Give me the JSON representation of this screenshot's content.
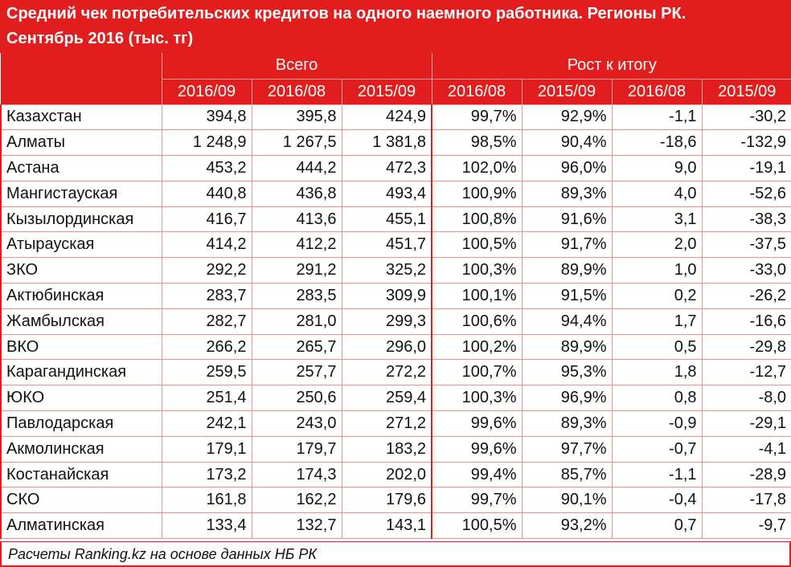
{
  "title_line1": "Средний чек потребительских кредитов на одного наемного работника. Регионы РК.",
  "title_line2": "Сентябрь 2016 (тыс. тг)",
  "group_headers": {
    "total": "Всего",
    "growth": "Рост к итогу"
  },
  "sub_headers": [
    "2016/09",
    "2016/08",
    "2015/09",
    "2016/08",
    "2015/09",
    "2016/08",
    "2015/09"
  ],
  "rows": [
    {
      "region": "Казахстан",
      "cells": [
        "394,8",
        "395,8",
        "424,9",
        "99,7%",
        "92,9%",
        "-1,1",
        "-30,2"
      ]
    },
    {
      "region": "Алматы",
      "cells": [
        "1 248,9",
        "1 267,5",
        "1 381,8",
        "98,5%",
        "90,4%",
        "-18,6",
        "-132,9"
      ]
    },
    {
      "region": "Астана",
      "cells": [
        "453,2",
        "444,2",
        "472,3",
        "102,0%",
        "96,0%",
        "9,0",
        "-19,1"
      ]
    },
    {
      "region": "Мангистауская",
      "cells": [
        "440,8",
        "436,8",
        "493,4",
        "100,9%",
        "89,3%",
        "4,0",
        "-52,6"
      ]
    },
    {
      "region": "Кызылординская",
      "cells": [
        "416,7",
        "413,6",
        "455,1",
        "100,8%",
        "91,6%",
        "3,1",
        "-38,3"
      ]
    },
    {
      "region": "Атырауская",
      "cells": [
        "414,2",
        "412,2",
        "451,7",
        "100,5%",
        "91,7%",
        "2,0",
        "-37,5"
      ]
    },
    {
      "region": "ЗКО",
      "cells": [
        "292,2",
        "291,2",
        "325,2",
        "100,3%",
        "89,9%",
        "1,0",
        "-33,0"
      ]
    },
    {
      "region": "Актюбинская",
      "cells": [
        "283,7",
        "283,5",
        "309,9",
        "100,1%",
        "91,5%",
        "0,2",
        "-26,2"
      ]
    },
    {
      "region": "Жамбылская",
      "cells": [
        "282,7",
        "281,0",
        "299,3",
        "100,6%",
        "94,4%",
        "1,7",
        "-16,6"
      ]
    },
    {
      "region": "ВКО",
      "cells": [
        "266,2",
        "265,7",
        "296,0",
        "100,2%",
        "89,9%",
        "0,5",
        "-29,8"
      ]
    },
    {
      "region": "Карагандинская",
      "cells": [
        "259,5",
        "257,7",
        "272,2",
        "100,7%",
        "95,3%",
        "1,8",
        "-12,7"
      ]
    },
    {
      "region": "ЮКО",
      "cells": [
        "251,4",
        "250,6",
        "259,4",
        "100,3%",
        "96,9%",
        "0,8",
        "-8,0"
      ]
    },
    {
      "region": "Павлодарская",
      "cells": [
        "242,1",
        "243,0",
        "271,2",
        "99,6%",
        "89,3%",
        "-0,9",
        "-29,1"
      ]
    },
    {
      "region": "Акмолинская",
      "cells": [
        "179,1",
        "179,7",
        "183,2",
        "99,6%",
        "97,7%",
        "-0,7",
        "-4,1"
      ]
    },
    {
      "region": "Костанайская",
      "cells": [
        "173,2",
        "174,3",
        "202,0",
        "99,4%",
        "85,7%",
        "-1,1",
        "-28,9"
      ]
    },
    {
      "region": "СКО",
      "cells": [
        "161,8",
        "162,2",
        "179,6",
        "99,7%",
        "90,1%",
        "-0,4",
        "-17,8"
      ]
    },
    {
      "region": "Алматинская",
      "cells": [
        "133,4",
        "132,7",
        "143,1",
        "100,5%",
        "93,2%",
        "0,7",
        "-9,7"
      ]
    }
  ],
  "footer": "Расчеты Ranking.kz на основе данных НБ РК",
  "colors": {
    "accent": "#e21d1d",
    "header_text": "#ffffff",
    "grid": "#e89090"
  },
  "chart_data": {
    "type": "table",
    "title": "Средний чек потребительских кредитов на одного наемного работника. Регионы РК. Сентябрь 2016 (тыс. тг)",
    "columns": [
      "Всего 2016/09",
      "Всего 2016/08",
      "Всего 2015/09",
      "Рост к итогу 2016/08",
      "Рост к итогу 2015/09",
      "2016/08",
      "2015/09"
    ],
    "categories": [
      "Казахстан",
      "Алматы",
      "Астана",
      "Мангистауская",
      "Кызылординская",
      "Атырауская",
      "ЗКО",
      "Актюбинская",
      "Жамбылская",
      "ВКО",
      "Карагандинская",
      "ЮКО",
      "Павлодарская",
      "Акмолинская",
      "Костанайская",
      "СКО",
      "Алматинская"
    ],
    "series": [
      {
        "values": [
          394.8,
          1248.9,
          453.2,
          440.8,
          416.7,
          414.2,
          292.2,
          283.7,
          282.7,
          266.2,
          259.5,
          251.4,
          242.1,
          179.1,
          173.2,
          161.8,
          133.4
        ]
      },
      {
        "values": [
          395.8,
          1267.5,
          444.2,
          436.8,
          413.6,
          412.2,
          291.2,
          283.5,
          281.0,
          265.7,
          257.7,
          250.6,
          243.0,
          179.7,
          174.3,
          162.2,
          132.7
        ]
      },
      {
        "values": [
          424.9,
          1381.8,
          472.3,
          493.4,
          455.1,
          451.7,
          325.2,
          309.9,
          299.3,
          296.0,
          272.2,
          259.4,
          271.2,
          183.2,
          202.0,
          179.6,
          143.1
        ]
      },
      {
        "values": [
          99.7,
          98.5,
          102.0,
          100.9,
          100.8,
          100.5,
          100.3,
          100.1,
          100.6,
          100.2,
          100.7,
          100.3,
          99.6,
          99.6,
          99.4,
          99.7,
          100.5
        ]
      },
      {
        "values": [
          92.9,
          90.4,
          96.0,
          89.3,
          91.6,
          91.7,
          89.9,
          91.5,
          94.4,
          89.9,
          95.3,
          96.9,
          89.3,
          97.7,
          85.7,
          90.1,
          93.2
        ]
      },
      {
        "values": [
          -1.1,
          -18.6,
          9.0,
          4.0,
          3.1,
          2.0,
          1.0,
          0.2,
          1.7,
          0.5,
          1.8,
          0.8,
          -0.9,
          -0.7,
          -1.1,
          -0.4,
          0.7
        ]
      },
      {
        "values": [
          -30.2,
          -132.9,
          -19.1,
          -52.6,
          -38.3,
          -37.5,
          -33.0,
          -26.2,
          -16.6,
          -29.8,
          -12.7,
          -8.0,
          -29.1,
          -4.1,
          -28.9,
          -17.8,
          -9.7
        ]
      }
    ]
  }
}
